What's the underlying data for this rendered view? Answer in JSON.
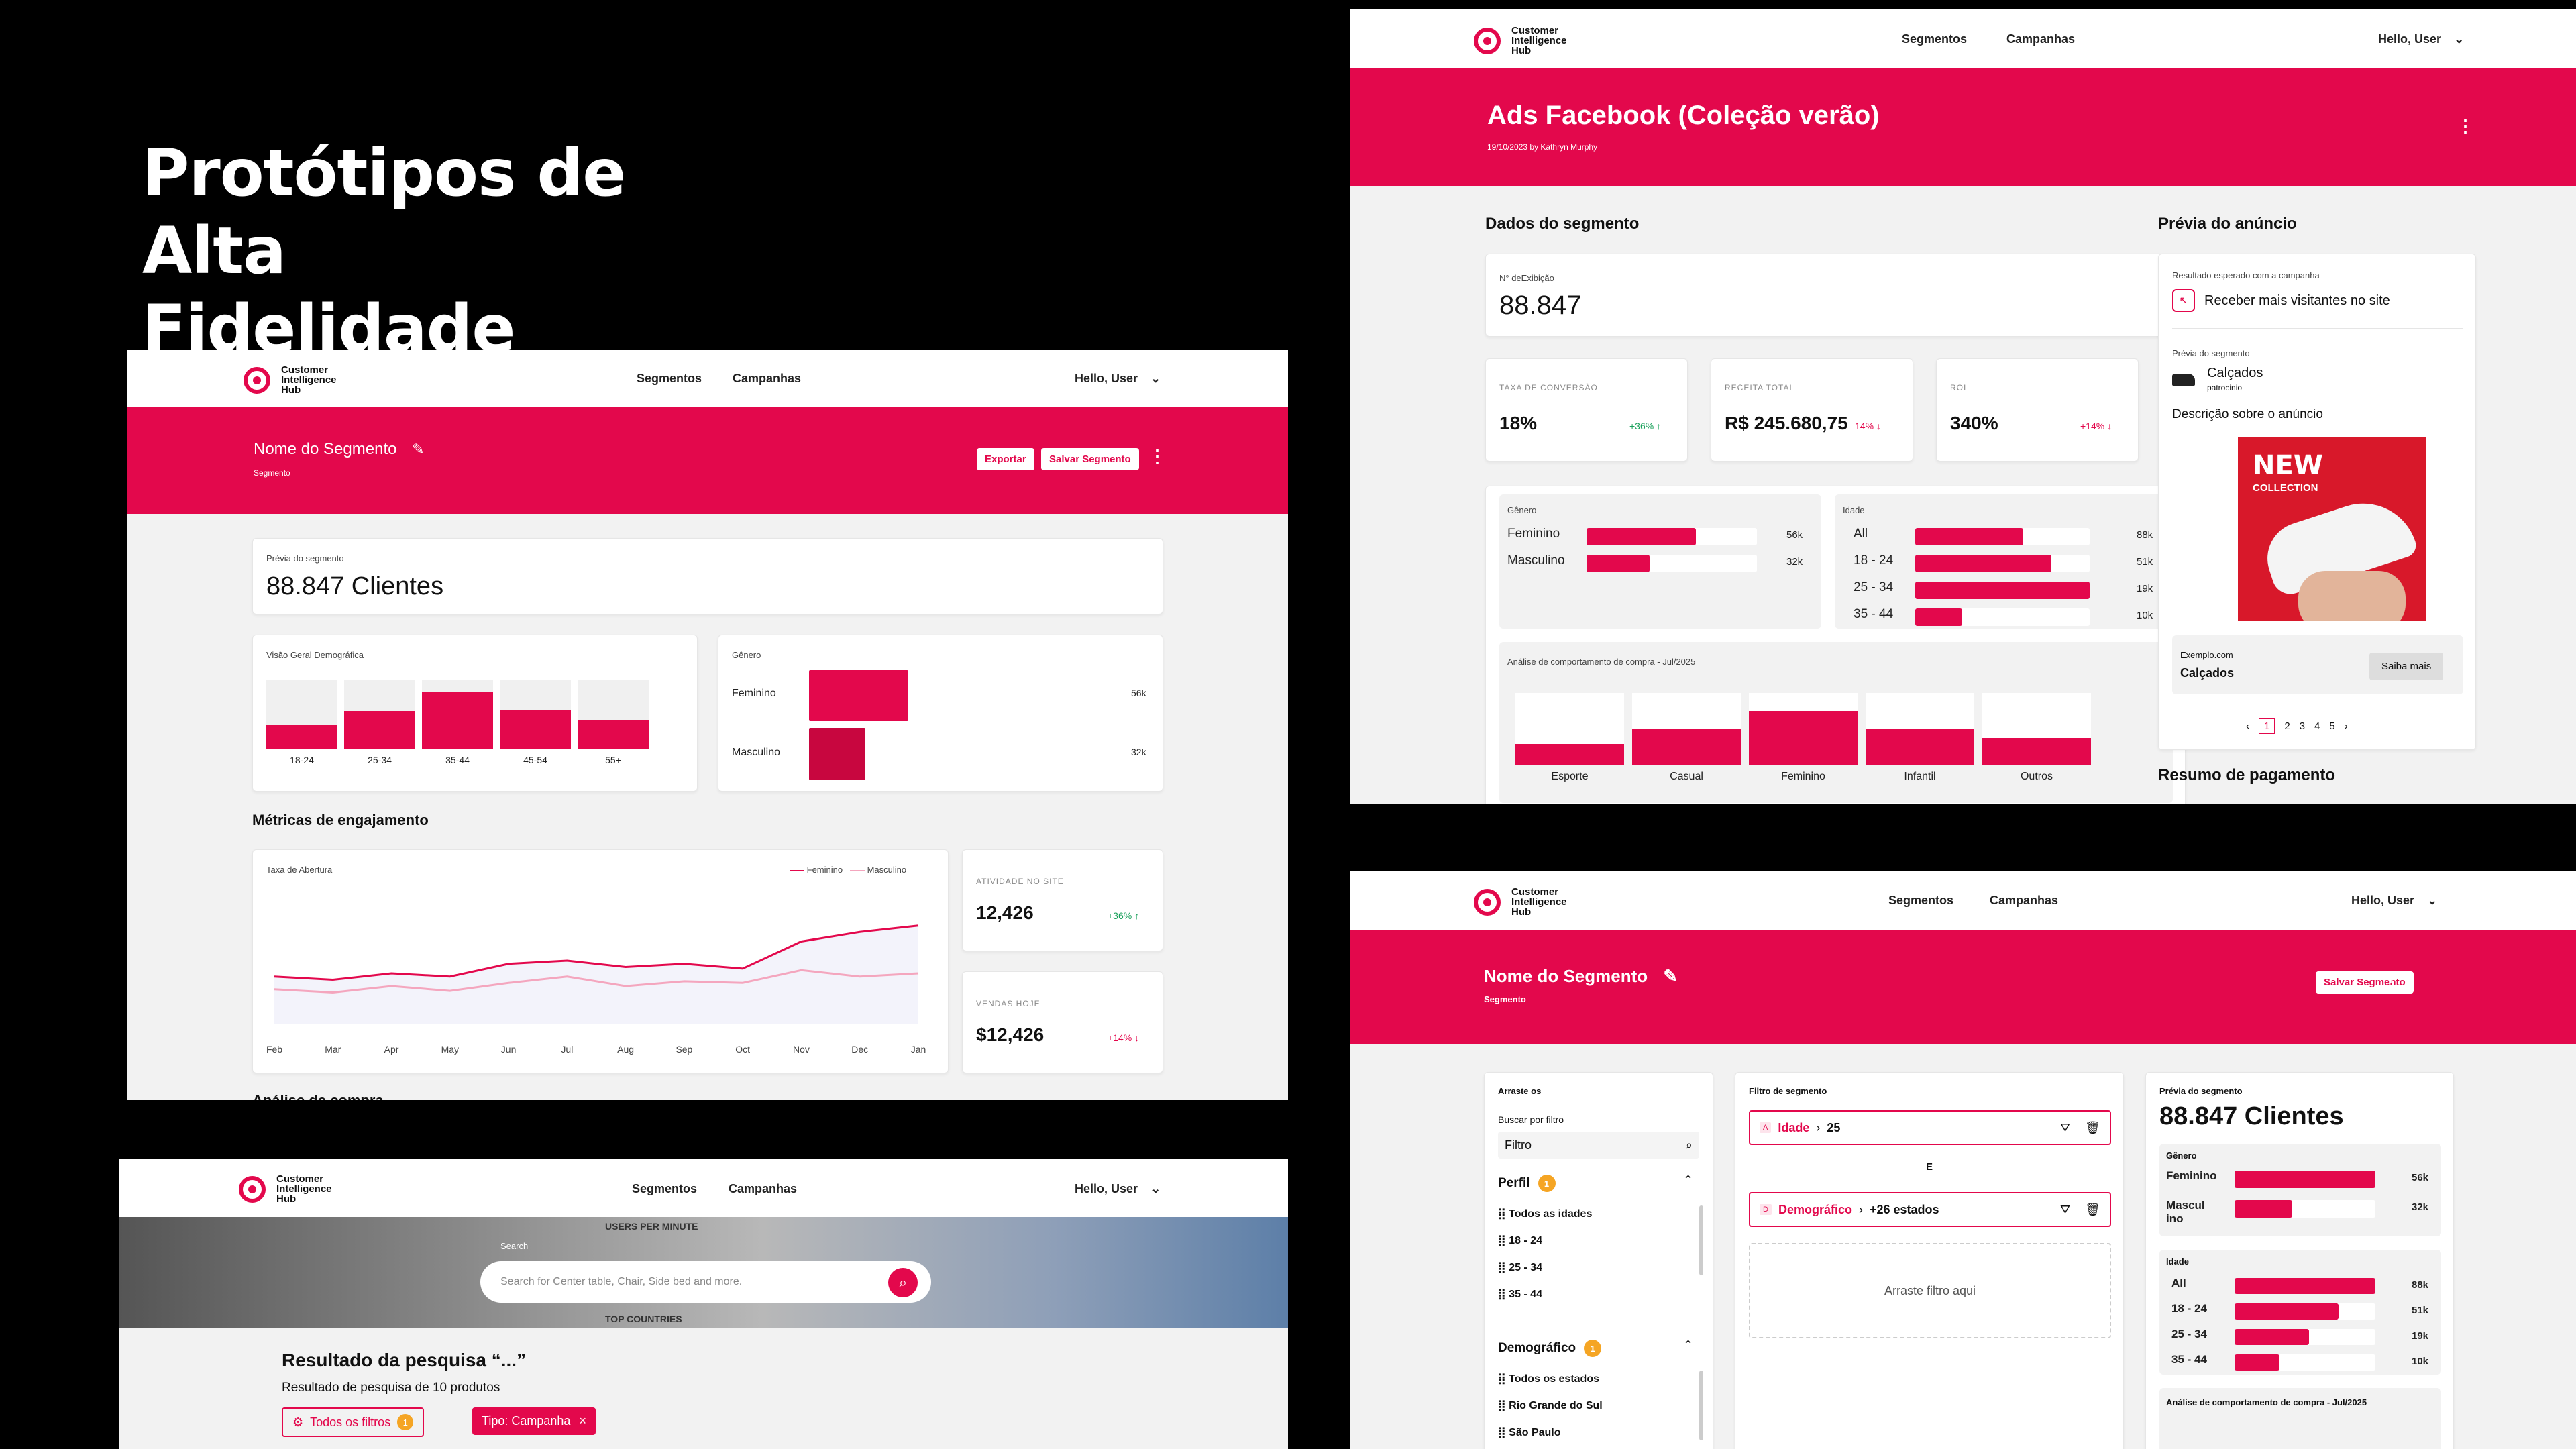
{
  "hero": {
    "line1": "Protótipos de Alta",
    "line2": "Fidelidade"
  },
  "brand": {
    "name": "Customer Intelligence Hub",
    "accent": "#e3084c"
  },
  "nav": {
    "segmentos": "Segmentos",
    "campanhas": "Campanhas",
    "user": "Hello, User"
  },
  "seg1": {
    "title": "Nome do Segmento",
    "subtitle": "Segmento",
    "export": "Exportar",
    "save": "Salvar Segmento",
    "preview_label": "Prévia do segmento",
    "preview_value": "88.847 Clientes",
    "demo_title": "Visão Geral Demográfica",
    "demo": [
      {
        "label": "18-24",
        "value": 0.35
      },
      {
        "label": "25-34",
        "value": 0.55
      },
      {
        "label": "35-44",
        "value": 0.82
      },
      {
        "label": "45-54",
        "value": 0.57
      },
      {
        "label": "55+",
        "value": 0.42
      }
    ],
    "gender_title": "Gênero",
    "gender": [
      {
        "label": "Feminino",
        "value": "56k"
      },
      {
        "label": "Masculino",
        "value": "32k"
      }
    ],
    "metrics_title": "Métricas de engajamento",
    "chart_title": "Taxa de Abertura",
    "legend_f": "Feminino",
    "legend_m": "Masculino",
    "months": [
      "Feb",
      "Mar",
      "Apr",
      "May",
      "Jun",
      "Jul",
      "Aug",
      "Sep",
      "Oct",
      "Nov",
      "Dec",
      "Jan"
    ],
    "site_label": "ATIVIDADE NO SITE",
    "site_value": "12,426",
    "site_delta": "+36%",
    "sales_label": "VENDAS HOJE",
    "sales_value": "$12,426",
    "sales_delta": "+14%",
    "cut_label": "Análise de compra"
  },
  "chart_data": {
    "type": "line",
    "title": "Taxa de Abertura",
    "x": [
      "Feb",
      "Mar",
      "Apr",
      "May",
      "Jun",
      "Jul",
      "Aug",
      "Sep",
      "Oct",
      "Nov",
      "Dec",
      "Jan"
    ],
    "series": [
      {
        "name": "Feminino",
        "values": [
          30,
          28,
          32,
          30,
          38,
          40,
          36,
          38,
          35,
          52,
          58,
          62
        ]
      },
      {
        "name": "Masculino",
        "values": [
          22,
          20,
          24,
          21,
          26,
          30,
          24,
          27,
          26,
          34,
          30,
          32
        ]
      }
    ]
  },
  "camp": {
    "title": "Ads Facebook (Coleção verão)",
    "meta": "19/10/2023 by Kathryn Murphy",
    "seg_title": "Dados do segmento",
    "exib_label": "N° deExibição",
    "exib_value": "88.847",
    "kpis": [
      {
        "label": "TAXA DE CONVERSÃO",
        "value": "18%",
        "delta": "+36%",
        "dir": "up"
      },
      {
        "label": "RECEITA TOTAL",
        "value": "R$ 245.680,75",
        "delta": "14%",
        "dir": "down"
      },
      {
        "label": "ROI",
        "value": "340%",
        "delta": "+14%",
        "dir": "down"
      }
    ],
    "gender_title": "Gênero",
    "gender": [
      {
        "label": "Feminino",
        "value": "56k",
        "pct": 0.64
      },
      {
        "label": "Masculino",
        "value": "32k",
        "pct": 0.37
      }
    ],
    "age_title": "Idade",
    "ages": [
      {
        "label": "All",
        "value": "88k",
        "pct": 0.62
      },
      {
        "label": "18 - 24",
        "value": "51k",
        "pct": 0.78
      },
      {
        "label": "25 - 34",
        "value": "19k",
        "pct": 1.0
      },
      {
        "label": "35 - 44",
        "value": "10k",
        "pct": 0.27
      }
    ],
    "behav_title": "Análise de comportamento de compra - Jul/2025",
    "behav": [
      {
        "label": "Esporte",
        "value": 0.3
      },
      {
        "label": "Casual",
        "value": 0.5
      },
      {
        "label": "Feminino",
        "value": 0.75
      },
      {
        "label": "Infantil",
        "value": 0.5
      },
      {
        "label": "Outros",
        "value": 0.38
      }
    ],
    "preview_title": "Prévia do anúncio",
    "expect_label": "Resultado esperado com a campanha",
    "expect_value": "Receber mais visitantes no site",
    "seg_label": "Prévia do segmento",
    "seg_name": "Calçados",
    "seg_sub": "patrocinio",
    "desc": "Descrição sobre o anúncio",
    "ad_line1": "NEW",
    "ad_line2": "COLLECTION",
    "site": "Exemplo.com",
    "cat": "Calçados",
    "more": "Saiba mais",
    "pages": [
      "1",
      "2",
      "3",
      "4",
      "5"
    ],
    "pay_title": "Resumo de pagamento"
  },
  "search": {
    "label": "Search",
    "placeholder": "Search for Center table, Chair, Side bed and more.",
    "bg1": "USERS PER MINUTE",
    "bg2": "TOP COUNTRIES",
    "result_title": "Resultado da pesquisa “...”",
    "result_sub": "Resultado de pesquisa de 10 produtos",
    "filters": "Todos os filtros",
    "filters_count": "1",
    "chip": "Tipo: Campanha"
  },
  "builder": {
    "title": "Nome do Segmento",
    "subtitle": "Segmento",
    "save": "Salvar Segmento",
    "drag_title": "Arraste os",
    "search_label": "Buscar por filtro",
    "search_value": "Filtro",
    "perfil": "Perfil",
    "perfil_count": "1",
    "perfil_items": [
      "Todos as idades",
      "18 - 24",
      "25 - 34",
      "35 - 44"
    ],
    "demo": "Demográfico",
    "demo_count": "1",
    "demo_items": [
      "Todos os estados",
      "Rio Grande do Sul",
      "São Paulo"
    ],
    "filter_title": "Filtro de segmento",
    "f1_tag": "Idade",
    "f1_value": "25",
    "and": "E",
    "f2_tag": "Demográfico",
    "f2_value": "+26 estados",
    "drop": "Arraste filtro aqui",
    "prev_label": "Prévia do segmento",
    "prev_value": "88.847 Clientes",
    "gender_title": "Gênero",
    "gender": [
      {
        "label": "Feminino",
        "value": "56k",
        "pct": 1.0
      },
      {
        "label": "Mascul ino",
        "value": "32k",
        "pct": 0.41
      }
    ],
    "age_title": "Idade",
    "ages": [
      {
        "label": "All",
        "value": "88k",
        "pct": 1.0
      },
      {
        "label": "18 - 24",
        "value": "51k",
        "pct": 0.74
      },
      {
        "label": "25 - 34",
        "value": "19k",
        "pct": 0.53
      },
      {
        "label": "35 - 44",
        "value": "10k",
        "pct": 0.32
      }
    ],
    "behav_title": "Análise de comportamento de compra - Jul/2025"
  }
}
